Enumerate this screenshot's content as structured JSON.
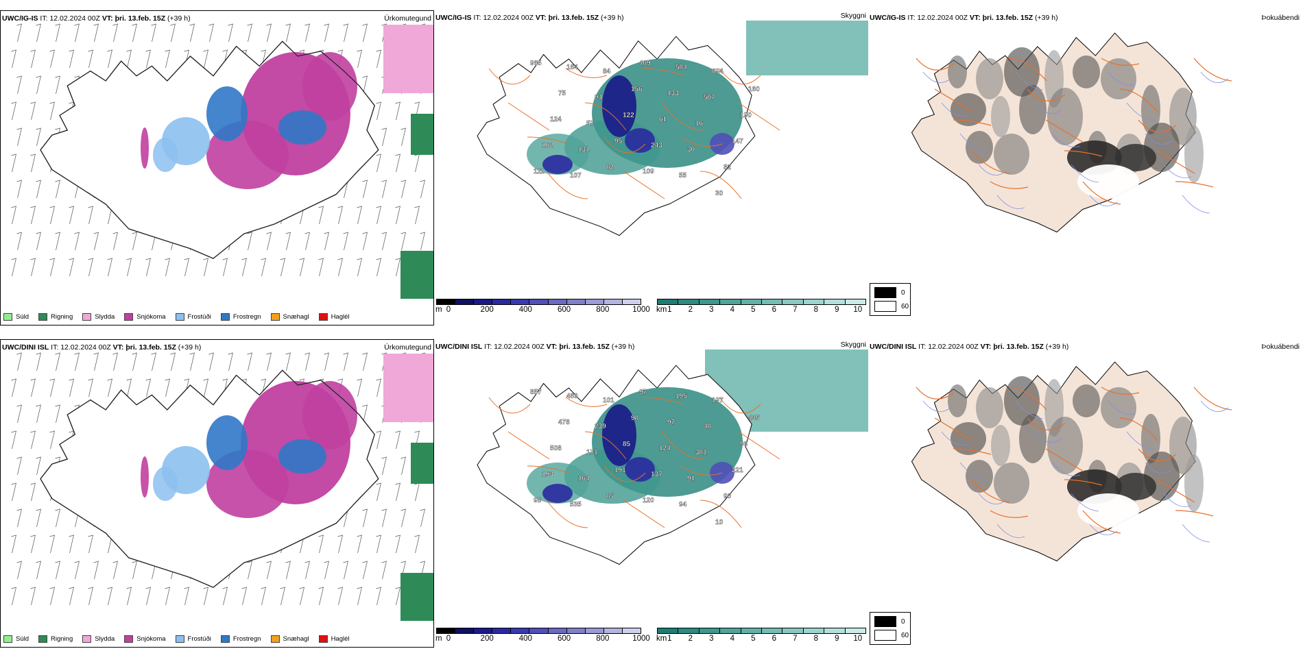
{
  "rows": [
    {
      "model": "UWC/IG-IS",
      "it_label": "IT:",
      "it_value": "12.02.2024 00Z",
      "vt_label": "VT:",
      "vt_value": "þri. 13.feb. 15Z",
      "lead": "(+39 h)"
    },
    {
      "model": "UWC/DINI ISL",
      "it_label": "IT:",
      "it_value": "12.02.2024 00Z",
      "vt_label": "VT:",
      "vt_value": "þri. 13.feb. 15Z",
      "lead": "(+39 h)"
    }
  ],
  "panel_titles": {
    "precip_type": "Úrkomutegund",
    "cloud": "Skyggni",
    "fog": "Þokuábendi"
  },
  "precip_legend": [
    {
      "label": "Súld",
      "color": "#90ee90"
    },
    {
      "label": "Rigning",
      "color": "#2e8b57"
    },
    {
      "label": "Slydda",
      "color": "#f0a8d8"
    },
    {
      "label": "Snjókoma",
      "color": "#c040a0"
    },
    {
      "label": "Frostúði",
      "color": "#8cc0f0"
    },
    {
      "label": "Frostregn",
      "color": "#3078c8"
    },
    {
      "label": "Snæhagl",
      "color": "#f0a020"
    },
    {
      "label": "Haglél",
      "color": "#e01010"
    }
  ],
  "altitude_bar": {
    "unit": "m",
    "ticks": [
      "0",
      "200",
      "400",
      "600",
      "800",
      "1000"
    ],
    "colors": [
      "#000000",
      "#101060",
      "#1a1a8a",
      "#2a2aa0",
      "#3a3ab0",
      "#5050b8",
      "#6a6ac0",
      "#8080c8",
      "#9a9ad4",
      "#b4b4e0",
      "#d0d0ec"
    ]
  },
  "visibility_bar": {
    "unit": "km",
    "ticks": [
      "1",
      "2",
      "3",
      "4",
      "5",
      "6",
      "7",
      "8",
      "9",
      "10"
    ],
    "colors": [
      "#1e7d73",
      "#2e8a80",
      "#3f978d",
      "#50a49a",
      "#62b1a7",
      "#75bdb4",
      "#89c9c1",
      "#9ed4ce",
      "#b4e0db",
      "#cbebe8"
    ]
  },
  "fog_legend": [
    {
      "label": "0",
      "color": "#000000"
    },
    {
      "label": "60",
      "color": "#ffffff"
    }
  ],
  "colors": {
    "land_fill": "#f4e4d8",
    "road": "#e8702a",
    "river": "#8090e0",
    "coast": "#000000"
  },
  "cloud_numbers": [
    [
      "965",
      "164",
      "84",
      "409",
      "584",
      "694",
      "160",
      "75",
      "94",
      "156",
      "133",
      "507",
      "190",
      "124",
      "57",
      "122",
      "61",
      "16",
      "147",
      "102",
      "131",
      "95",
      "243",
      "30",
      "82",
      "111",
      "107",
      "82",
      "109",
      "55",
      "30"
    ],
    [
      "857",
      "469",
      "101",
      "97",
      "195",
      "197",
      "435",
      "478",
      "239",
      "98",
      "97",
      "48",
      "96",
      "508",
      "171",
      "85",
      "124",
      "381",
      "221",
      "193",
      "164",
      "191",
      "137",
      "91",
      "90",
      "98",
      "535",
      "85",
      "120",
      "94",
      "10"
    ]
  ]
}
